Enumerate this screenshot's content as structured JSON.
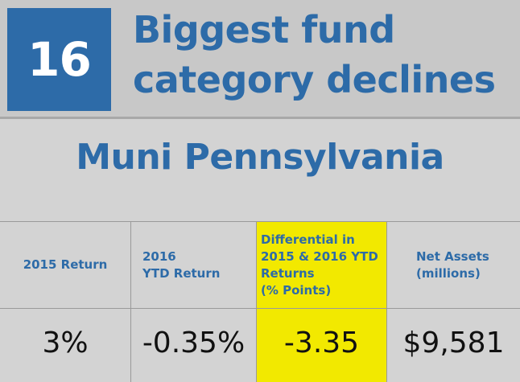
{
  "header": {
    "rank": "16",
    "title_line1": "Biggest fund",
    "title_line2": "category declines"
  },
  "subtitle": "Muni Pennsylvania",
  "table": {
    "columns": [
      {
        "header": "2015 Return",
        "value": "3%"
      },
      {
        "header": "2016\nYTD Return",
        "value": "-0.35%"
      },
      {
        "header": "Differential in\n2015 & 2016 YTD\nReturns\n(% Points)",
        "value": "-3.35"
      },
      {
        "header": "Net Assets\n(millions)",
        "value": "$9,581"
      }
    ]
  },
  "colors": {
    "brand_blue": "#2d6ba8",
    "highlight_yellow": "#f2e900",
    "background_gray": "#d3d3d3"
  }
}
